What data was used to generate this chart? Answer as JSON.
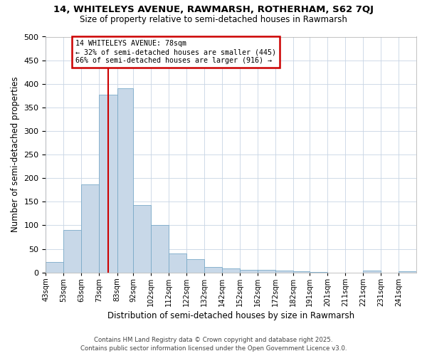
{
  "title": "14, WHITELEYS AVENUE, RAWMARSH, ROTHERHAM, S62 7QJ",
  "subtitle": "Size of property relative to semi-detached houses in Rawmarsh",
  "xlabel": "Distribution of semi-detached houses by size in Rawmarsh",
  "ylabel": "Number of semi-detached properties",
  "bin_labels": [
    "43sqm",
    "53sqm",
    "63sqm",
    "73sqm",
    "83sqm",
    "92sqm",
    "102sqm",
    "112sqm",
    "122sqm",
    "132sqm",
    "142sqm",
    "152sqm",
    "162sqm",
    "172sqm",
    "182sqm",
    "191sqm",
    "201sqm",
    "211sqm",
    "221sqm",
    "231sqm",
    "241sqm"
  ],
  "bin_edges": [
    43,
    53,
    63,
    73,
    83,
    92,
    102,
    112,
    122,
    132,
    142,
    152,
    162,
    172,
    182,
    191,
    201,
    211,
    221,
    231,
    241,
    251
  ],
  "counts": [
    22,
    90,
    187,
    377,
    390,
    143,
    101,
    40,
    29,
    11,
    8,
    6,
    5,
    4,
    3,
    1,
    0,
    0,
    4,
    0,
    3
  ],
  "bar_color": "#c8d8e8",
  "bar_edge_color": "#7aaac8",
  "property_size": 78,
  "marker_line_color": "#cc0000",
  "annotation_box_edge_color": "#cc0000",
  "annotation_line1": "14 WHITELEYS AVENUE: 78sqm",
  "annotation_line2": "← 32% of semi-detached houses are smaller (445)",
  "annotation_line3": "66% of semi-detached houses are larger (916) →",
  "ylim": [
    0,
    500
  ],
  "yticks": [
    0,
    50,
    100,
    150,
    200,
    250,
    300,
    350,
    400,
    450,
    500
  ],
  "footer1": "Contains HM Land Registry data © Crown copyright and database right 2025.",
  "footer2": "Contains public sector information licensed under the Open Government Licence v3.0.",
  "background_color": "#ffffff",
  "grid_color": "#c8d4e4"
}
